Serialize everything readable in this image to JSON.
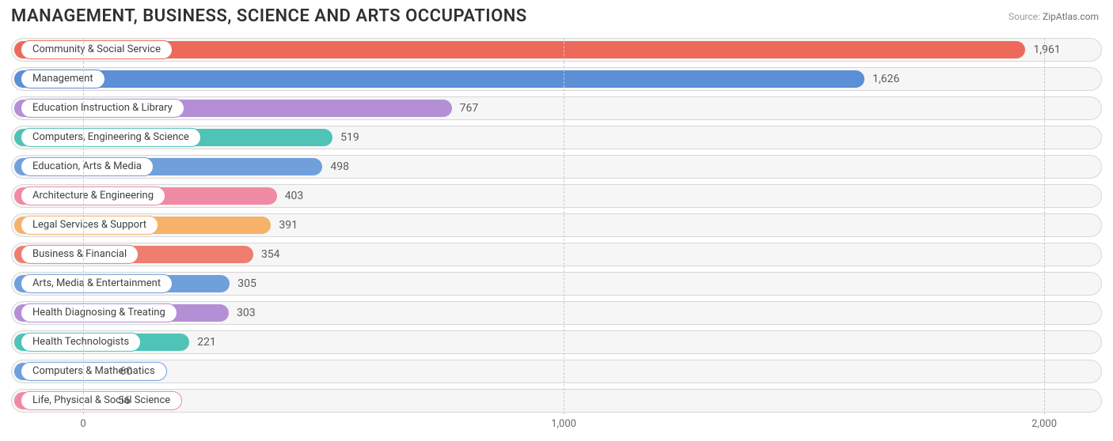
{
  "title": "MANAGEMENT, BUSINESS, SCIENCE AND ARTS OCCUPATIONS",
  "source_label": "Source:",
  "source_value": "ZipAtlas.com",
  "chart": {
    "type": "bar-horizontal",
    "background_color": "#ffffff",
    "track_bg": "#f6f6f6",
    "track_border": "#d7d7d7",
    "grid_color": "#c9c9c9",
    "text_color": "#5a5a5a",
    "title_color": "#303030",
    "title_fontsize": 22,
    "label_fontsize": 13,
    "value_fontsize": 14,
    "x_min": -150,
    "x_max": 2120,
    "x_ticks": [
      0,
      1000,
      2000
    ],
    "x_tick_labels": [
      "0",
      "1,000",
      "2,000"
    ],
    "bar_inner_inset": 4,
    "row_gap": 7,
    "categories": [
      {
        "label": "Community & Social Service",
        "value": 1961,
        "display": "1,961",
        "color": "#ed6a5a"
      },
      {
        "label": "Management",
        "value": 1626,
        "display": "1,626",
        "color": "#5b8fd6"
      },
      {
        "label": "Education Instruction & Library",
        "value": 767,
        "display": "767",
        "color": "#b58fd6"
      },
      {
        "label": "Computers, Engineering & Science",
        "value": 519,
        "display": "519",
        "color": "#4fc3b6"
      },
      {
        "label": "Education, Arts & Media",
        "value": 498,
        "display": "498",
        "color": "#6fa0db"
      },
      {
        "label": "Architecture & Engineering",
        "value": 403,
        "display": "403",
        "color": "#f08aa4"
      },
      {
        "label": "Legal Services & Support",
        "value": 391,
        "display": "391",
        "color": "#f6b26b"
      },
      {
        "label": "Business & Financial",
        "value": 354,
        "display": "354",
        "color": "#ee7e70"
      },
      {
        "label": "Arts, Media & Entertainment",
        "value": 305,
        "display": "305",
        "color": "#6fa0db"
      },
      {
        "label": "Health Diagnosing & Treating",
        "value": 303,
        "display": "303",
        "color": "#b58fd6"
      },
      {
        "label": "Health Technologists",
        "value": 221,
        "display": "221",
        "color": "#4fc3b6"
      },
      {
        "label": "Computers & Mathematics",
        "value": 60,
        "display": "60",
        "color": "#6fa0db"
      },
      {
        "label": "Life, Physical & Social Science",
        "value": 56,
        "display": "56",
        "color": "#f08aa4"
      }
    ]
  }
}
